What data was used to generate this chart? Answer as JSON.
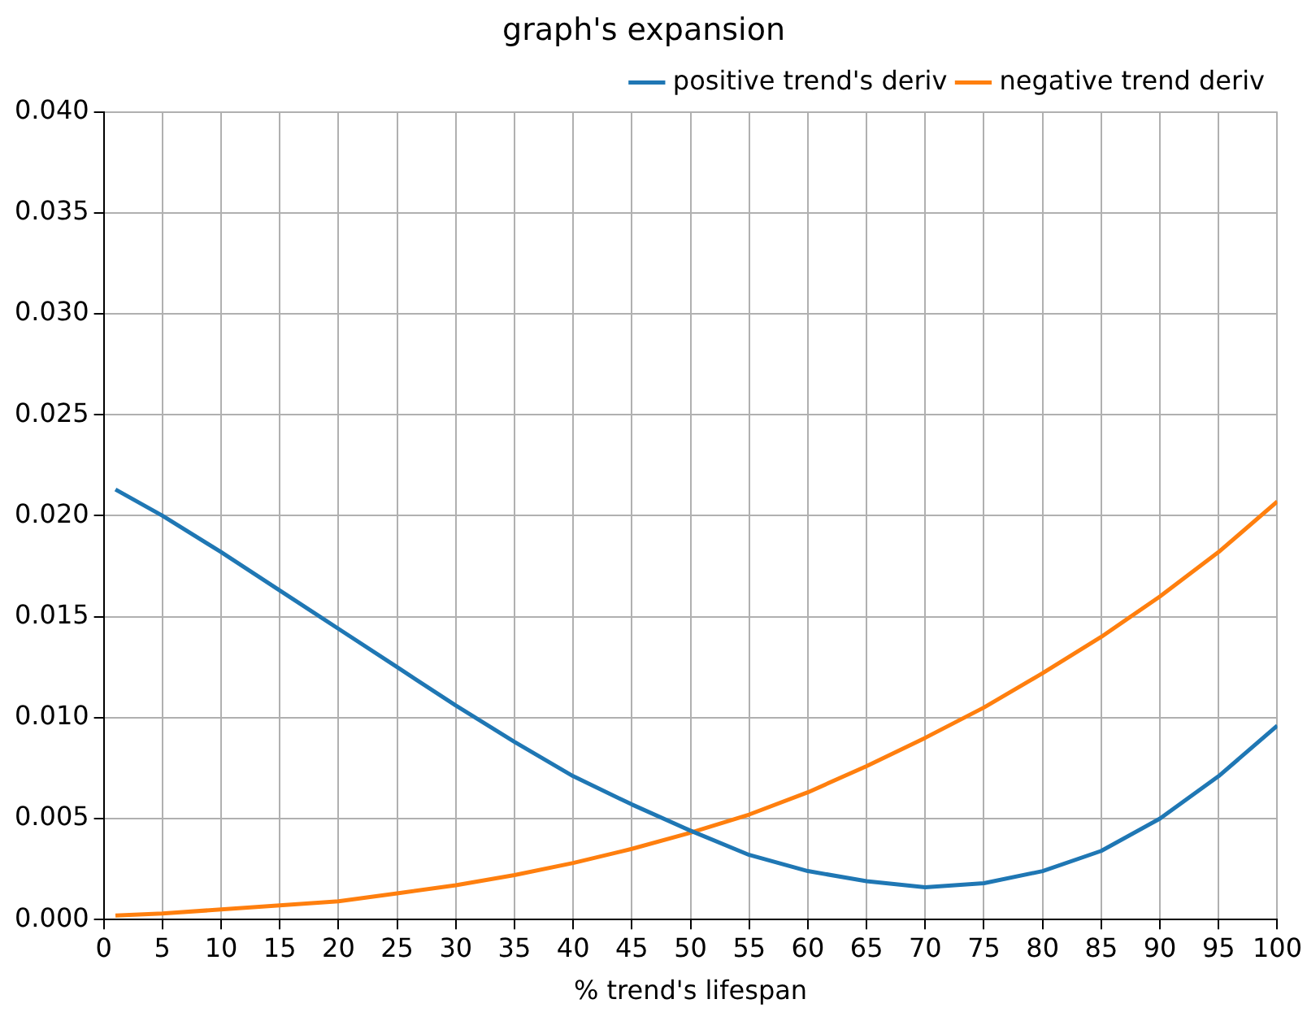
{
  "chart_data": {
    "type": "line",
    "title": "graph's expansion",
    "xlabel": "% trend's lifespan",
    "x": [
      1,
      5,
      10,
      15,
      20,
      25,
      30,
      35,
      40,
      45,
      50,
      55,
      60,
      65,
      70,
      75,
      80,
      85,
      90,
      95,
      100
    ],
    "series": [
      {
        "name": "positive trend's deriv",
        "color": "#1f77b4",
        "values": [
          0.0213,
          0.02,
          0.0182,
          0.0163,
          0.0144,
          0.0125,
          0.0106,
          0.0088,
          0.0071,
          0.0057,
          0.0044,
          0.0032,
          0.0024,
          0.0019,
          0.0016,
          0.0018,
          0.0024,
          0.0034,
          0.005,
          0.0071,
          0.0096
        ]
      },
      {
        "name": "negative trend deriv",
        "color": "#ff7f0e",
        "values": [
          0.0002,
          0.0003,
          0.0005,
          0.0007,
          0.0009,
          0.0013,
          0.0017,
          0.0022,
          0.0028,
          0.0035,
          0.0043,
          0.0052,
          0.0063,
          0.0076,
          0.009,
          0.0105,
          0.0122,
          0.014,
          0.016,
          0.0182,
          0.0207
        ]
      }
    ],
    "xlim": [
      0,
      100
    ],
    "xticks": [
      0,
      5,
      10,
      15,
      20,
      25,
      30,
      35,
      40,
      45,
      50,
      55,
      60,
      65,
      70,
      75,
      80,
      85,
      90,
      95,
      100
    ],
    "ylim": [
      0,
      0.04
    ],
    "yticks": [
      {
        "value": 0,
        "label": "0.000"
      },
      {
        "value": 0.005,
        "label": "0.005"
      },
      {
        "value": 0.01,
        "label": "0.010"
      },
      {
        "value": 0.015,
        "label": "0.015"
      },
      {
        "value": 0.02,
        "label": "0.020"
      },
      {
        "value": 0.025,
        "label": "0.025"
      },
      {
        "value": 0.03,
        "label": "0.030"
      },
      {
        "value": 0.035,
        "label": "0.035"
      },
      {
        "value": 0.04,
        "label": "0.040"
      }
    ],
    "grid": true,
    "legend": "top right",
    "marker": "none",
    "line_style": "solid"
  }
}
